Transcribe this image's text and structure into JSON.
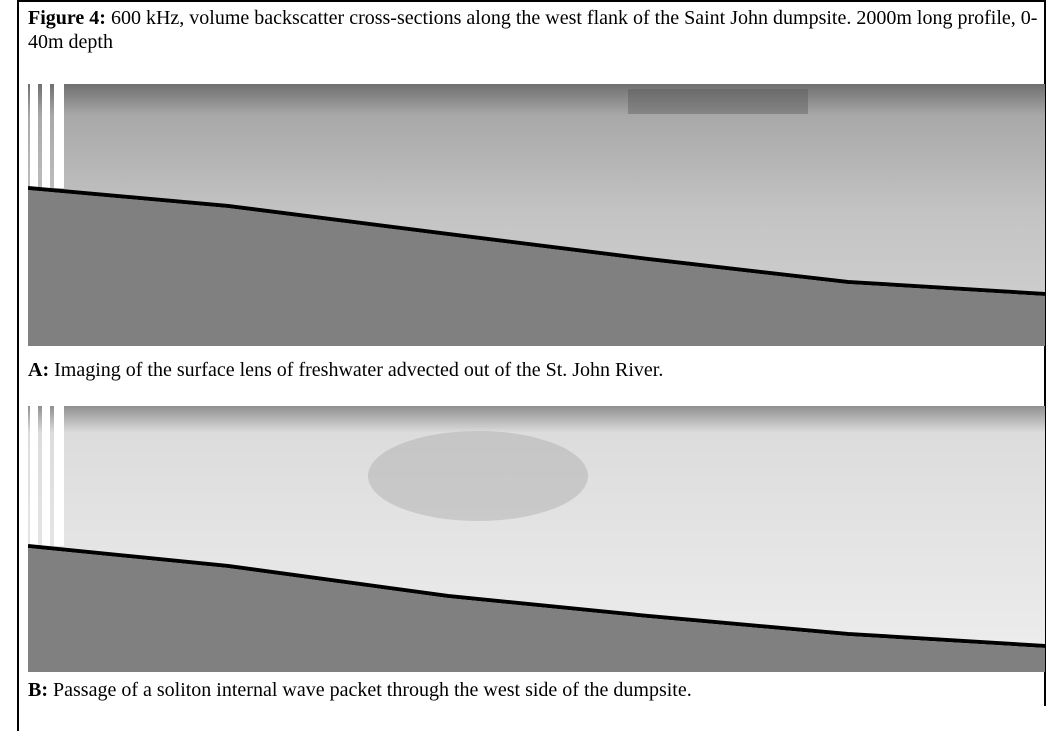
{
  "figure": {
    "label": "Figure 4:",
    "caption": "600 kHz, volume backscatter cross-sections along the west flank of the Saint John dumpsite.  2000m long profile, 0-40m depth"
  },
  "panels": [
    {
      "label": "A:",
      "caption": "Imaging of the surface lens of freshwater advected out of the St. John River."
    },
    {
      "label": "B:",
      "caption": "Passage of a soliton internal wave packet through the west side of the dumpsite."
    }
  ]
}
